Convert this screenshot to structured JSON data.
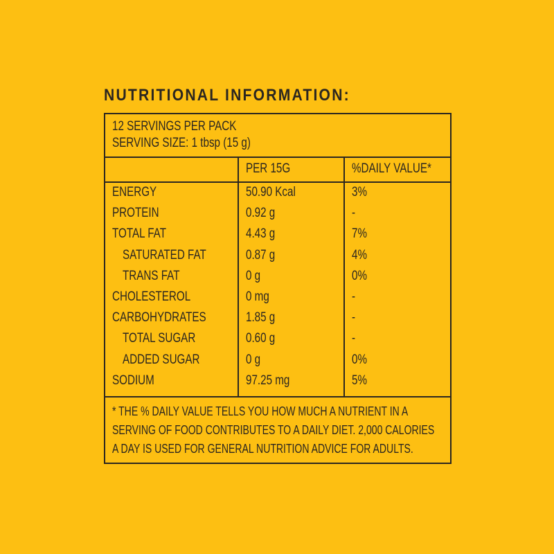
{
  "header": {
    "title": "NUTRITIONAL INFORMATION:"
  },
  "table": {
    "servings": [
      "12 SERVINGS PER PACK",
      "SERVING SIZE: 1 tbsp (15 g)"
    ],
    "columns": [
      "PER 15G",
      "%DAILY VALUE*"
    ],
    "rows": [
      {
        "name": "ENERGY",
        "amount": "50.90 Kcal",
        "daily_value": "3%"
      },
      {
        "name": "PROTEIN",
        "amount": "0.92 g",
        "daily_value": "-"
      },
      {
        "name": "TOTAL FAT",
        "amount": "4.43 g",
        "daily_value": "7%",
        "children": [
          {
            "name": "SATURATED FAT",
            "amount": "0.87 g",
            "daily_value": "4%"
          },
          {
            "name": "TRANS FAT",
            "amount": "0 g",
            "daily_value": "0%"
          }
        ]
      },
      {
        "name": "CHOLESTEROL",
        "amount": "0 mg",
        "daily_value": "-"
      },
      {
        "name": "CARBOHYDRATES",
        "amount": "1.85 g",
        "daily_value": "-",
        "children": [
          {
            "name": "TOTAL SUGAR",
            "amount": "0.60 g",
            "daily_value": "-"
          },
          {
            "name": "ADDED SUGAR",
            "amount": "0 g",
            "daily_value": "0%"
          }
        ]
      },
      {
        "name": "SODIUM",
        "amount": "97.25 mg",
        "daily_value": "5%"
      }
    ],
    "footnote": [
      "* THE % DAILY VALUE TELLS YOU HOW MUCH A NUTRIENT IN A",
      "SERVING OF FOOD CONTRIBUTES TO A DAILY DIET. 2,000 CALORIES",
      "A DAY IS USED FOR GENERAL NUTRITION ADVICE FOR ADULTS."
    ]
  }
}
